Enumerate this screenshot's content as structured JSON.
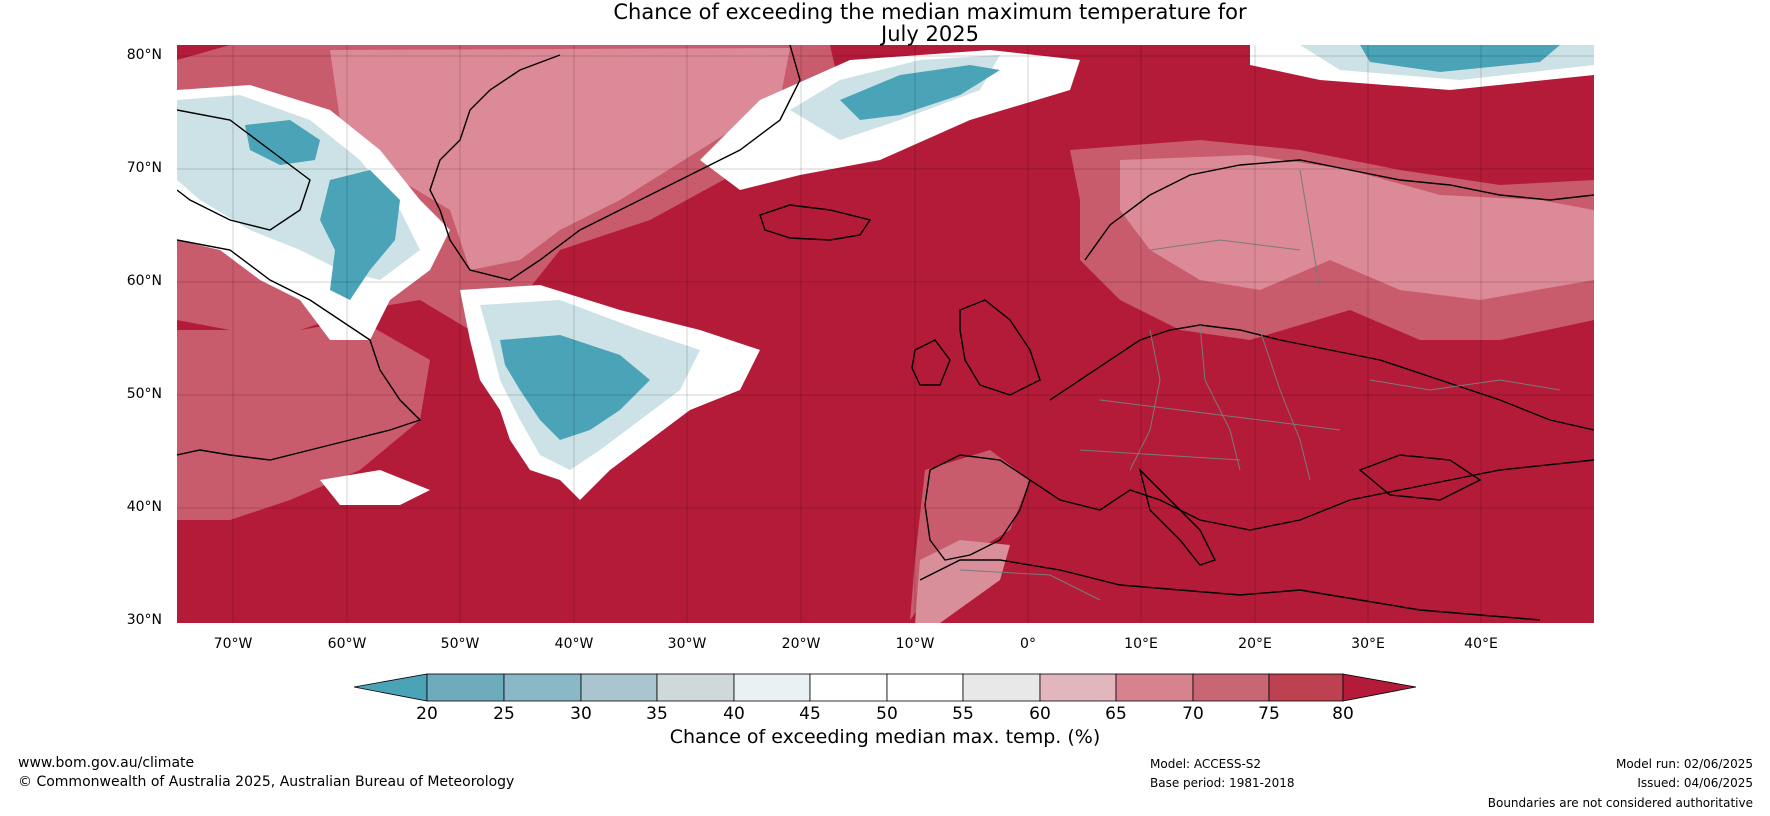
{
  "title": {
    "line1": "Chance of exceeding the median maximum temperature for",
    "line2": "July 2025"
  },
  "latitude_labels": [
    "80°N",
    "70°N",
    "60°N",
    "50°N",
    "40°N",
    "30°N"
  ],
  "longitude_labels": [
    "70°W",
    "60°W",
    "50°W",
    "40°W",
    "30°W",
    "20°W",
    "10°W",
    "0°",
    "10°E",
    "20°E",
    "30°E",
    "40°E"
  ],
  "colorbar": {
    "ticks": [
      "20",
      "25",
      "30",
      "35",
      "40",
      "45",
      "50",
      "55",
      "60",
      "65",
      "70",
      "75",
      "80"
    ],
    "label": "Chance of exceeding median max. temp. (%)",
    "colors": [
      "#4aa3b7",
      "#6eacbd",
      "#8ab8c6",
      "#aac5ce",
      "#cfd9da",
      "#eaf1f2",
      "#ffffff",
      "#ffffff",
      "#e8e8e8",
      "#e2b6bd",
      "#d6828f",
      "#c86675",
      "#be4152",
      "#b41b38"
    ]
  },
  "map_colors": {
    "warm": "#b41b38",
    "warm_mid": "#c95c6c",
    "warm_light": "#dc8a97",
    "warm_pale": "#e9b8c0",
    "neutral": "#ffffff",
    "cool_pale": "#cde2e6",
    "cool": "#4aa3b7",
    "coast": "#000000",
    "borders": "#7a7a7a"
  },
  "footer": {
    "website": "www.bom.gov.au/climate",
    "copyright": "© Commonwealth of Australia 2025, Australian Bureau of Meteorology",
    "model": "Model: ACCESS-S2",
    "base_period": "Base period: 1981-2018",
    "model_run": "Model run: 02/06/2025",
    "issued": "Issued: 04/06/2025",
    "disclaimer": "Boundaries are not considered authoritative"
  }
}
